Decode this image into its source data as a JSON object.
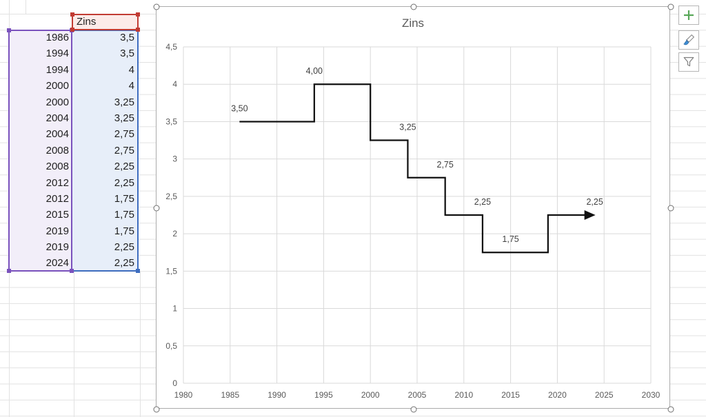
{
  "sheet": {
    "table": {
      "header_label": "Zins",
      "rows": [
        [
          "1986",
          "3,5"
        ],
        [
          "1994",
          "3,5"
        ],
        [
          "1994",
          "4"
        ],
        [
          "2000",
          "4"
        ],
        [
          "2000",
          "3,25"
        ],
        [
          "2004",
          "3,25"
        ],
        [
          "2004",
          "2,75"
        ],
        [
          "2008",
          "2,75"
        ],
        [
          "2008",
          "2,25"
        ],
        [
          "2012",
          "2,25"
        ],
        [
          "2012",
          "1,75"
        ],
        [
          "2015",
          "1,75"
        ],
        [
          "2019",
          "1,75"
        ],
        [
          "2019",
          "2,25"
        ],
        [
          "2024",
          "2,25"
        ]
      ]
    },
    "highlight_colors": {
      "series_name_border": "#c13b33",
      "series_name_fill": "#fcebe9",
      "categories_border": "#7a52bd",
      "categories_fill": "#f2eef9",
      "values_border": "#3e6dbf",
      "values_fill": "#e7eef9"
    }
  },
  "chart": {
    "title": "Zins",
    "side_buttons": [
      {
        "name": "chart-elements",
        "icon": "plus-icon",
        "color": "#58a758"
      },
      {
        "name": "chart-styles",
        "icon": "paintbrush-icon",
        "color": "#3f8fd6"
      },
      {
        "name": "chart-filters",
        "icon": "funnel-icon",
        "color": "#808080"
      }
    ]
  },
  "chart_data": {
    "type": "line",
    "title": "Zins",
    "x": [
      1986,
      1994,
      1994,
      2000,
      2000,
      2004,
      2004,
      2008,
      2008,
      2012,
      2012,
      2015,
      2019,
      2019,
      2024
    ],
    "y": [
      3.5,
      3.5,
      4,
      4,
      3.25,
      3.25,
      2.75,
      2.75,
      2.25,
      2.25,
      1.75,
      1.75,
      1.75,
      2.25,
      2.25
    ],
    "xlim": [
      1980,
      2030
    ],
    "ylim": [
      0,
      4.5
    ],
    "xtick_values": [
      1980,
      1985,
      1990,
      1995,
      2000,
      2005,
      2010,
      2015,
      2020,
      2025,
      2030
    ],
    "xtick_labels": [
      "1980",
      "1985",
      "1990",
      "1995",
      "2000",
      "2005",
      "2010",
      "2015",
      "2020",
      "2025",
      "2030"
    ],
    "ytick_values": [
      0,
      0.5,
      1,
      1.5,
      2,
      2.5,
      3,
      3.5,
      4,
      4.5
    ],
    "ytick_labels": [
      "0",
      "0,5",
      "1",
      "1,5",
      "2",
      "2,5",
      "3",
      "3,5",
      "4",
      "4,5"
    ],
    "data_labels": [
      {
        "x": 1986,
        "y": 3.5,
        "text": "3,50"
      },
      {
        "x": 1994,
        "y": 4,
        "text": "4,00"
      },
      {
        "x": 2004,
        "y": 3.25,
        "text": "3,25"
      },
      {
        "x": 2008,
        "y": 2.75,
        "text": "2,75"
      },
      {
        "x": 2012,
        "y": 2.25,
        "text": "2,25"
      },
      {
        "x": 2015,
        "y": 1.75,
        "text": "1,75"
      },
      {
        "x": 2024,
        "y": 2.25,
        "text": "2,25"
      }
    ],
    "arrow_at_end": true,
    "grid": true,
    "legend": "none",
    "line_color": "#111111",
    "gridline_color": "#d9d9d9",
    "tick_label_color": "#595959",
    "data_label_color": "#404040"
  }
}
